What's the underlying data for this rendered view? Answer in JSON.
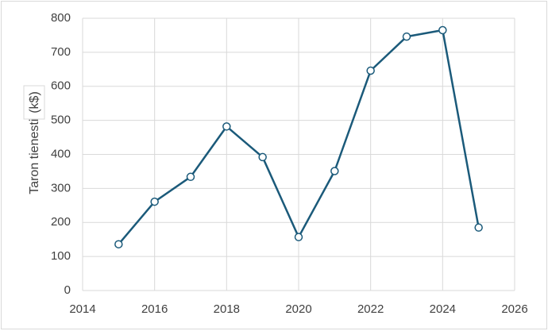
{
  "chart_data": {
    "type": "line",
    "y_label": "Taron tienestit",
    "y_unit": "(k$)",
    "x": [
      2015,
      2016,
      2017,
      2018,
      2019,
      2020,
      2021,
      2022,
      2023,
      2024,
      2025
    ],
    "series": [
      {
        "name": "Taron tienestit",
        "color": "#1b5a7a",
        "values": [
          136,
          261,
          334,
          482,
          392,
          157,
          351,
          646,
          746,
          765,
          185
        ]
      }
    ],
    "xlim": [
      2014,
      2026
    ],
    "xticks": [
      2014,
      2016,
      2018,
      2020,
      2022,
      2024,
      2026
    ],
    "ylim": [
      0,
      800
    ],
    "yticks": [
      0,
      100,
      200,
      300,
      400,
      500,
      600,
      700,
      800
    ],
    "grid": true
  }
}
